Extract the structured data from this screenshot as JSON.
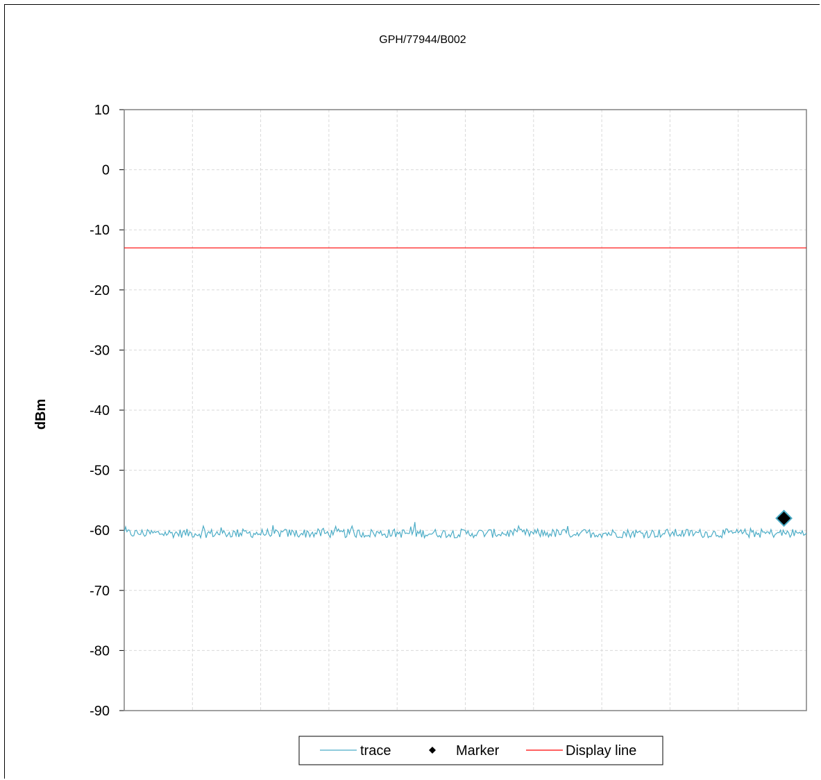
{
  "chart_data": {
    "type": "line",
    "title": "GPH/77944/B002",
    "xlabel": "",
    "ylabel": "dBm",
    "ylim": [
      -90,
      10
    ],
    "yticks": [
      "10",
      "0",
      "-10",
      "-20",
      "-30",
      "-40",
      "-50",
      "-60",
      "-70",
      "-80",
      "-90"
    ],
    "xlim": [
      0,
      10
    ],
    "grid": true,
    "legend_position": "bottom",
    "series": [
      {
        "name": "trace",
        "color": "#4bacc6",
        "kind": "line",
        "noise_floor_dbm": -60.5,
        "noise_amplitude_db": 1.5,
        "points": 500
      },
      {
        "name": "Marker",
        "color": "#000000",
        "kind": "marker",
        "x": 9.67,
        "y": -58
      },
      {
        "name": "Display line",
        "color": "#ff0000",
        "kind": "hline",
        "y": -13
      }
    ]
  }
}
